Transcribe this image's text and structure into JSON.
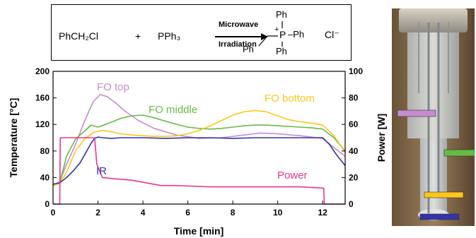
{
  "scheme": {
    "reactant1": "PhCH₂Cl",
    "plus": "+",
    "reactant2": "PPh₃",
    "condition_top": "Microwave",
    "condition_bottom": "Irradiation",
    "product": {
      "ph_top": "Ph",
      "charge": "+",
      "p": "P",
      "ph_right": "–Ph",
      "ph_bottom": "Ph",
      "benzyl_ph": "Ph",
      "counterion": "Cl⁻"
    }
  },
  "chart_data": {
    "type": "line",
    "xlabel": "Time [min]",
    "ylabel_left": "Temperature [°C]",
    "ylabel_right": "Power [W]",
    "xlim": [
      0,
      13
    ],
    "xticks": [
      0,
      2,
      4,
      6,
      8,
      10,
      12
    ],
    "ylim_left": [
      0,
      200
    ],
    "yticks_left": [
      0,
      40,
      80,
      120,
      160,
      200
    ],
    "ylim_right": [
      0,
      100
    ],
    "yticks_right": [
      0,
      20,
      40,
      60,
      80,
      100
    ],
    "series": [
      {
        "name": "FO top",
        "axis": "left",
        "color": "#c58ccf",
        "x": [
          0,
          0.3,
          0.6,
          1.0,
          1.4,
          1.8,
          2.1,
          2.4,
          2.8,
          3.2,
          3.8,
          4.5,
          5.5,
          6.5,
          7.5,
          8.5,
          9.2,
          10,
          11,
          12,
          12.5,
          13
        ],
        "y": [
          28,
          34,
          60,
          90,
          125,
          155,
          165,
          162,
          152,
          140,
          126,
          114,
          104,
          99,
          100,
          104,
          107,
          106,
          103,
          99,
          85,
          72
        ]
      },
      {
        "name": "FO middle",
        "axis": "left",
        "color": "#66bb44",
        "x": [
          0,
          0.3,
          0.6,
          1.0,
          1.4,
          1.7,
          2.0,
          2.5,
          3.0,
          3.5,
          4.0,
          4.5,
          5.0,
          5.5,
          6.0,
          6.5,
          7.0,
          7.5,
          8.0,
          8.5,
          9.0,
          9.5,
          10,
          10.5,
          11,
          11.5,
          12,
          12.5,
          13
        ],
        "y": [
          28,
          32,
          72,
          98,
          110,
          119,
          116,
          122,
          129,
          133,
          134,
          130,
          125,
          120,
          116,
          114,
          113,
          114,
          116,
          118,
          119,
          119,
          118,
          117,
          116,
          115,
          113,
          100,
          80
        ]
      },
      {
        "name": "FO bottom",
        "axis": "left",
        "color": "#ffc61a",
        "x": [
          0,
          0.3,
          0.6,
          1.0,
          1.4,
          1.8,
          2.2,
          2.6,
          3.0,
          3.5,
          4.0,
          4.5,
          5.0,
          5.5,
          6.0,
          6.5,
          7.0,
          7.5,
          8.0,
          8.5,
          9.0,
          9.5,
          10,
          10.5,
          11,
          11.5,
          12,
          12.5,
          13
        ],
        "y": [
          28,
          31,
          48,
          80,
          98,
          108,
          111,
          109,
          106,
          104,
          103,
          102,
          102,
          103,
          106,
          111,
          118,
          126,
          134,
          139,
          141,
          139,
          133,
          127,
          124,
          122,
          119,
          103,
          78
        ]
      },
      {
        "name": "IR",
        "axis": "left",
        "color": "#3333aa",
        "x": [
          0,
          0.3,
          0.6,
          0.9,
          1.2,
          1.5,
          1.7,
          1.85,
          2.0,
          2.2,
          2.6,
          3.0,
          4,
          5,
          6,
          7,
          8,
          9,
          10,
          11,
          12,
          12.3,
          12.6,
          13
        ],
        "y": [
          30,
          32,
          40,
          50,
          62,
          80,
          92,
          99,
          101,
          100,
          99,
          100,
          100,
          99,
          100,
          100,
          99,
          100,
          100,
          100,
          100,
          90,
          75,
          58
        ]
      },
      {
        "name": "Power",
        "axis": "right",
        "color": "#e8368f",
        "x": [
          0,
          0.3,
          0.32,
          1.85,
          1.95,
          2.1,
          2.2,
          2.8,
          3.5,
          4.8,
          5.5,
          7,
          9,
          11,
          12.05,
          12.07,
          13
        ],
        "y": [
          0,
          0,
          50,
          50,
          30,
          24,
          20,
          19,
          18,
          14,
          14,
          13,
          13,
          13,
          12,
          0,
          0
        ]
      }
    ],
    "labels": [
      {
        "text": "FO top",
        "color": "#c58ccf"
      },
      {
        "text": "FO middle",
        "color": "#66bb44"
      },
      {
        "text": "FO bottom",
        "color": "#ffc61a"
      },
      {
        "text": "IR",
        "color": "#3333aa"
      },
      {
        "text": "Power",
        "color": "#e8368f"
      }
    ],
    "sensor_markers": [
      {
        "color": "#c58ccf"
      },
      {
        "color": "#66bb44"
      },
      {
        "color": "#ffc61a"
      },
      {
        "color": "#3333aa"
      }
    ]
  }
}
